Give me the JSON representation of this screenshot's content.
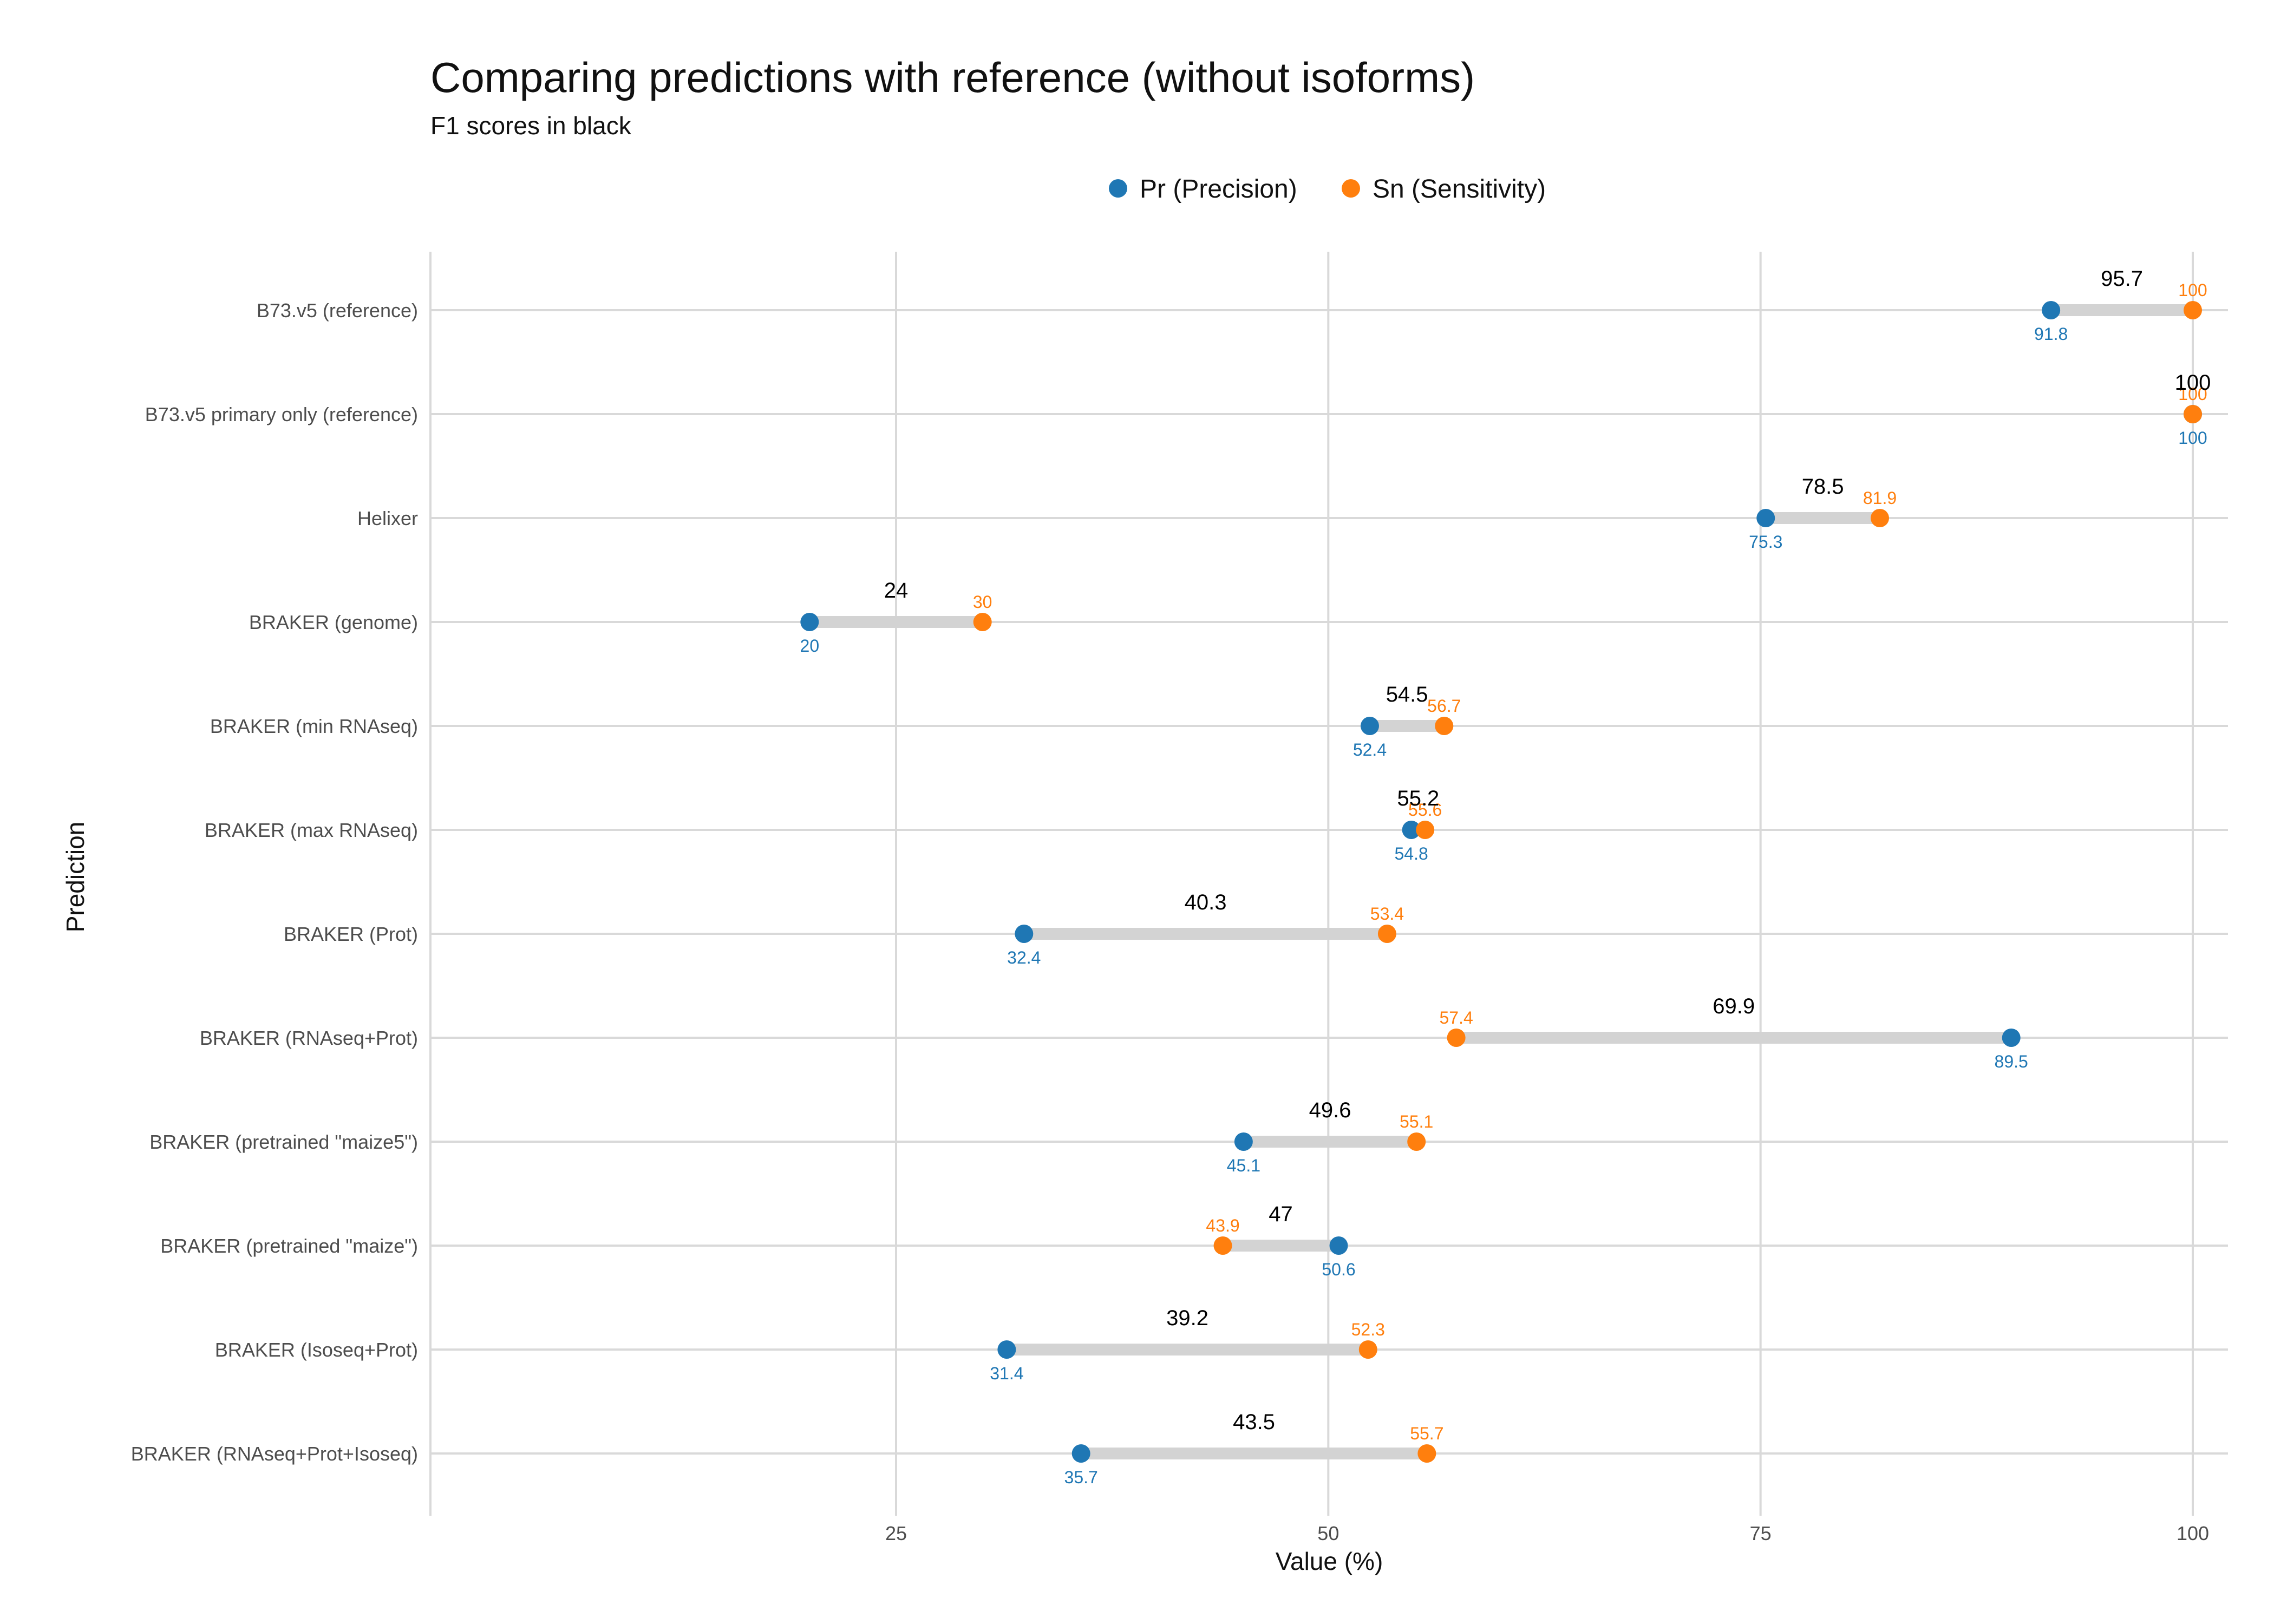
{
  "chart_data": {
    "type": "dumbbell",
    "title": "Comparing predictions with reference (without isoforms)",
    "subtitle": "F1 scores in black",
    "xlabel": "Value (%)",
    "ylabel": "Prediction",
    "xticks": [
      25,
      50,
      75,
      100
    ],
    "xlim": [
      0,
      102
    ],
    "grid": true,
    "legend_position": "top",
    "legend": [
      {
        "name": "Pr (Precision)",
        "color": "#1f77b4"
      },
      {
        "name": "Sn (Sensitivity)",
        "color": "#ff7f0e"
      }
    ],
    "colors": {
      "precision": "#1f77b4",
      "sensitivity": "#ff7f0e",
      "segment": "#d3d3d3",
      "f1": "#000000",
      "grid": "#d9d9d9"
    },
    "categories": [
      "B73.v5 (reference)",
      "B73.v5 primary only (reference)",
      "Helixer",
      "BRAKER (genome)",
      "BRAKER (min RNAseq)",
      "BRAKER (max RNAseq)",
      "BRAKER (Prot)",
      "BRAKER (RNAseq+Prot)",
      "BRAKER (pretrained \"maize5\")",
      "BRAKER (pretrained \"maize\")",
      "BRAKER (Isoseq+Prot)",
      "BRAKER (RNAseq+Prot+Isoseq)"
    ],
    "series": [
      {
        "name": "Pr (Precision)",
        "values": [
          91.8,
          100,
          75.3,
          20,
          52.4,
          54.8,
          32.4,
          89.5,
          45.1,
          50.6,
          31.4,
          35.7
        ]
      },
      {
        "name": "Sn (Sensitivity)",
        "values": [
          100,
          100,
          81.9,
          30,
          56.7,
          55.6,
          53.4,
          57.4,
          55.1,
          43.9,
          52.3,
          55.7
        ]
      },
      {
        "name": "F1",
        "values": [
          95.7,
          100,
          78.5,
          24,
          54.5,
          55.2,
          40.3,
          69.9,
          49.6,
          47,
          39.2,
          43.5
        ]
      }
    ]
  }
}
